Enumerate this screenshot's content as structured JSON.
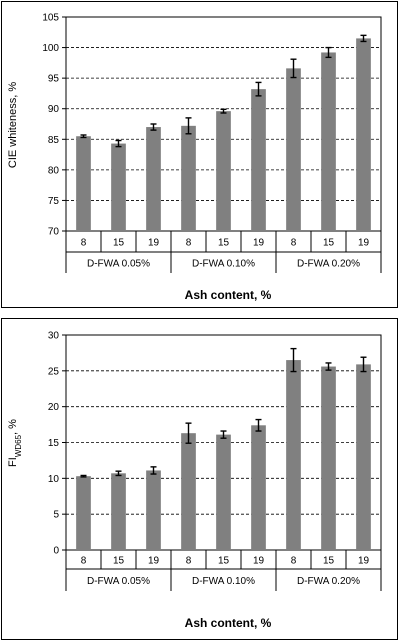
{
  "chart_data": [
    {
      "type": "bar",
      "ylabel": "CIE whiteness, %",
      "xlabel": "Ash content,  %",
      "ylim": [
        70,
        105
      ],
      "yticks": [
        70,
        75,
        80,
        85,
        90,
        95,
        100,
        105
      ],
      "grid": true,
      "error_bars": true,
      "groups": [
        "D-FWA 0.05%",
        "D-FWA 0.10%",
        "D-FWA 0.20%"
      ],
      "categories": [
        "8",
        "15",
        "19",
        "8",
        "15",
        "19",
        "8",
        "15",
        "19"
      ],
      "values": [
        85.5,
        84.3,
        87.0,
        87.2,
        89.6,
        93.2,
        96.6,
        99.2,
        101.5
      ],
      "errors": [
        0.2,
        0.5,
        0.5,
        1.3,
        0.3,
        1.1,
        1.5,
        0.8,
        0.5
      ]
    },
    {
      "type": "bar",
      "ylabel": "FI",
      "ylabel_sub": "WD65",
      "ylabel_suffix": ", %",
      "xlabel": "Ash content, %",
      "ylim": [
        0,
        30
      ],
      "yticks": [
        0,
        5,
        10,
        15,
        20,
        25,
        30
      ],
      "grid": true,
      "error_bars": true,
      "groups": [
        "D-FWA 0.05%",
        "D-FWA 0.10%",
        "D-FWA 0.20%"
      ],
      "categories": [
        "8",
        "15",
        "19",
        "8",
        "15",
        "19",
        "8",
        "15",
        "19"
      ],
      "values": [
        10.3,
        10.7,
        11.1,
        16.3,
        16.1,
        17.4,
        26.5,
        25.6,
        25.9
      ],
      "errors": [
        0.1,
        0.3,
        0.5,
        1.4,
        0.5,
        0.8,
        1.6,
        0.5,
        1.0
      ]
    }
  ],
  "colors": {
    "bar": "#808080",
    "frame": "#000000",
    "background": "#ffffff"
  }
}
